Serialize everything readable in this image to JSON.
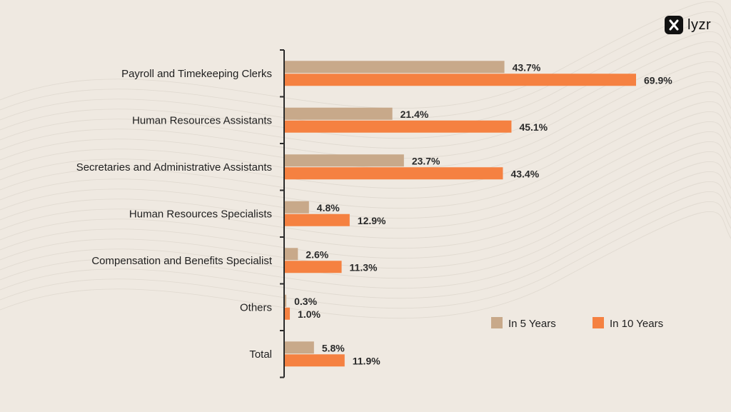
{
  "brand": {
    "name": "lyzr"
  },
  "colors": {
    "in5": "#c8a98a",
    "in10": "#f58141",
    "axis": "#2b2b2b",
    "background": "#efe9e1"
  },
  "chart_data": {
    "type": "bar",
    "orientation": "horizontal",
    "categories": [
      "Payroll and Timekeeping Clerks",
      "Human Resources Assistants",
      "Secretaries and Administrative Assistants",
      "Human Resources Specialists",
      "Compensation and Benefits Specialist",
      "Others",
      "Total"
    ],
    "series": [
      {
        "name": "In 5 Years",
        "color": "#c8a98a",
        "values": [
          43.7,
          21.4,
          23.7,
          4.8,
          2.6,
          0.3,
          5.8
        ],
        "labels": [
          "43.7%",
          "21.4%",
          "23.7%",
          "4.8%",
          "2.6%",
          "0.3%",
          "5.8%"
        ]
      },
      {
        "name": "In 10 Years",
        "color": "#f58141",
        "values": [
          69.9,
          45.1,
          43.4,
          12.9,
          11.3,
          1.0,
          11.9
        ],
        "labels": [
          "69.9%",
          "45.1%",
          "43.4%",
          "12.9%",
          "11.3%",
          "1.0%",
          "11.9%"
        ]
      }
    ],
    "xlim": [
      0,
      70
    ],
    "grid": false,
    "legend_position": "bottom-right"
  }
}
